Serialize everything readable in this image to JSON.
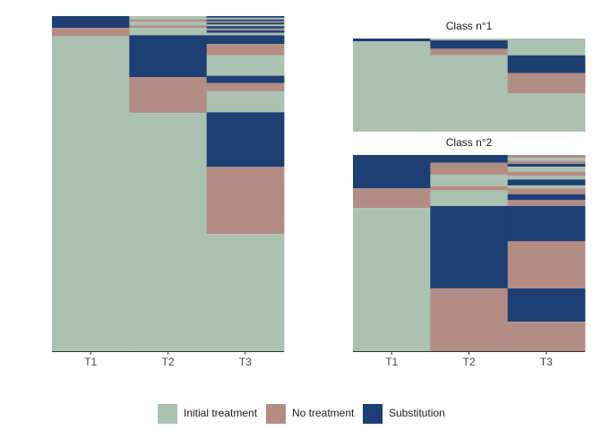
{
  "chart_data": {
    "type": "sequence-index-plot",
    "x_categories": [
      "T1",
      "T2",
      "T3"
    ],
    "states": [
      {
        "name": "Initial treatment",
        "color": "#abc1b1"
      },
      {
        "name": "No treatment",
        "color": "#b38c84"
      },
      {
        "name": "Substitution",
        "color": "#1d3f74"
      }
    ],
    "panels": [
      {
        "title": "",
        "columns": [
          [
            {
              "state": "Substitution",
              "from": 0.965,
              "to": 1.0
            },
            {
              "state": "No treatment",
              "from": 0.94,
              "to": 0.965
            },
            {
              "state": "Initial treatment",
              "from": 0.0,
              "to": 0.94
            }
          ],
          [
            {
              "state": "Initial treatment",
              "from": 0.99,
              "to": 1.0
            },
            {
              "state": "No treatment",
              "from": 0.983,
              "to": 0.99
            },
            {
              "state": "Initial treatment",
              "from": 0.973,
              "to": 0.983
            },
            {
              "state": "No treatment",
              "from": 0.965,
              "to": 0.973
            },
            {
              "state": "Initial treatment",
              "from": 0.943,
              "to": 0.965
            },
            {
              "state": "Substitution",
              "from": 0.818,
              "to": 0.943
            },
            {
              "state": "No treatment",
              "from": 0.711,
              "to": 0.818
            },
            {
              "state": "Initial treatment",
              "from": 0.0,
              "to": 0.711
            }
          ],
          [
            {
              "state": "Substitution",
              "from": 0.995,
              "to": 1.0
            },
            {
              "state": "Initial treatment",
              "from": 0.99,
              "to": 0.995
            },
            {
              "state": "Substitution",
              "from": 0.985,
              "to": 0.99
            },
            {
              "state": "No treatment",
              "from": 0.98,
              "to": 0.985
            },
            {
              "state": "Substitution",
              "from": 0.975,
              "to": 0.98
            },
            {
              "state": "Initial treatment",
              "from": 0.97,
              "to": 0.975
            },
            {
              "state": "Substitution",
              "from": 0.963,
              "to": 0.97
            },
            {
              "state": "No treatment",
              "from": 0.957,
              "to": 0.963
            },
            {
              "state": "Substitution",
              "from": 0.95,
              "to": 0.957
            },
            {
              "state": "Initial treatment",
              "from": 0.943,
              "to": 0.95
            },
            {
              "state": "Substitution",
              "from": 0.917,
              "to": 0.943
            },
            {
              "state": "No treatment",
              "from": 0.883,
              "to": 0.917
            },
            {
              "state": "Initial treatment",
              "from": 0.822,
              "to": 0.883
            },
            {
              "state": "Substitution",
              "from": 0.8,
              "to": 0.822
            },
            {
              "state": "No treatment",
              "from": 0.775,
              "to": 0.8
            },
            {
              "state": "Initial treatment",
              "from": 0.713,
              "to": 0.775
            },
            {
              "state": "Substitution",
              "from": 0.55,
              "to": 0.713
            },
            {
              "state": "No treatment",
              "from": 0.35,
              "to": 0.55
            },
            {
              "state": "Initial treatment",
              "from": 0.0,
              "to": 0.35
            }
          ]
        ]
      },
      {
        "title": "Class n°1",
        "columns": [
          [
            {
              "state": "Substitution",
              "from": 0.97,
              "to": 1.0
            },
            {
              "state": "Initial treatment",
              "from": 0.0,
              "to": 0.97
            }
          ],
          [
            {
              "state": "Initial treatment",
              "from": 0.98,
              "to": 1.0
            },
            {
              "state": "Substitution",
              "from": 0.89,
              "to": 0.98
            },
            {
              "state": "No treatment",
              "from": 0.82,
              "to": 0.89
            },
            {
              "state": "Initial treatment",
              "from": 0.0,
              "to": 0.82
            }
          ],
          [
            {
              "state": "Initial treatment",
              "from": 0.82,
              "to": 1.0
            },
            {
              "state": "Substitution",
              "from": 0.63,
              "to": 0.82
            },
            {
              "state": "No treatment",
              "from": 0.41,
              "to": 0.63
            },
            {
              "state": "Initial treatment",
              "from": 0.0,
              "to": 0.41
            }
          ]
        ]
      },
      {
        "title": "Class n°2",
        "columns": [
          [
            {
              "state": "Substitution",
              "from": 0.83,
              "to": 1.0
            },
            {
              "state": "No treatment",
              "from": 0.73,
              "to": 0.83
            },
            {
              "state": "Initial treatment",
              "from": 0.0,
              "to": 0.73
            }
          ],
          [
            {
              "state": "Substitution",
              "from": 0.96,
              "to": 1.0
            },
            {
              "state": "No treatment",
              "from": 0.9,
              "to": 0.96
            },
            {
              "state": "Initial treatment",
              "from": 0.89,
              "to": 0.9
            },
            {
              "state": "Initial treatment",
              "from": 0.84,
              "to": 0.89
            },
            {
              "state": "No treatment",
              "from": 0.82,
              "to": 0.84
            },
            {
              "state": "Initial treatment",
              "from": 0.74,
              "to": 0.82
            },
            {
              "state": "Substitution",
              "from": 0.32,
              "to": 0.74
            },
            {
              "state": "No treatment",
              "from": 0.0,
              "to": 0.32
            }
          ],
          [
            {
              "state": "No treatment",
              "from": 0.985,
              "to": 1.0
            },
            {
              "state": "Initial treatment",
              "from": 0.97,
              "to": 0.985
            },
            {
              "state": "No treatment",
              "from": 0.955,
              "to": 0.97
            },
            {
              "state": "Substitution",
              "from": 0.94,
              "to": 0.955
            },
            {
              "state": "Initial treatment",
              "from": 0.915,
              "to": 0.94
            },
            {
              "state": "No treatment",
              "from": 0.895,
              "to": 0.915
            },
            {
              "state": "Initial treatment",
              "from": 0.875,
              "to": 0.895
            },
            {
              "state": "Substitution",
              "from": 0.845,
              "to": 0.875
            },
            {
              "state": "Initial treatment",
              "from": 0.83,
              "to": 0.845
            },
            {
              "state": "No treatment",
              "from": 0.8,
              "to": 0.83
            },
            {
              "state": "Substitution",
              "from": 0.77,
              "to": 0.8
            },
            {
              "state": "No treatment",
              "from": 0.74,
              "to": 0.77
            },
            {
              "state": "Substitution",
              "from": 0.56,
              "to": 0.74
            },
            {
              "state": "No treatment",
              "from": 0.32,
              "to": 0.56
            },
            {
              "state": "Substitution",
              "from": 0.15,
              "to": 0.32
            },
            {
              "state": "No treatment",
              "from": 0.0,
              "to": 0.15
            }
          ]
        ]
      }
    ],
    "legend": {
      "position": "bottom"
    }
  }
}
